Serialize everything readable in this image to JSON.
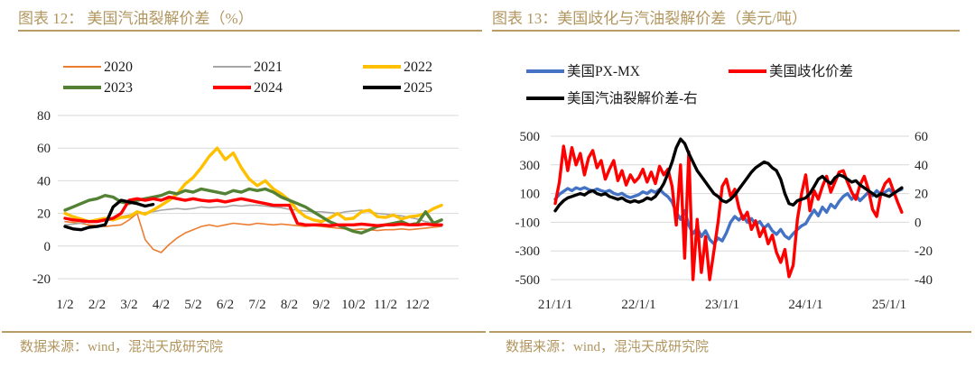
{
  "panels": {
    "left": {
      "title": "图表 12：  美国汽油裂解价差（%）",
      "source": "数据来源：wind，混沌天成研究院"
    },
    "right": {
      "title": "图表 13：美国歧化与汽油裂解价差（美元/吨）",
      "source": "数据来源：wind，混沌天成研究院"
    }
  },
  "colors": {
    "accent_gold": "#B2965F",
    "rule_gold": "#B89C66",
    "grid": "#D9D9D9",
    "tick_text": "#262626",
    "orange_2020": "#ED7D31",
    "gray_2021": "#A6A6A6",
    "yellow_2022": "#FFC000",
    "green_2023": "#548235",
    "red_series": "#FF0000",
    "black_series": "#000000",
    "blue_pxmx": "#4472C4"
  },
  "chart_data": [
    {
      "id": "us-gasoline-crack-seasonal",
      "type": "line",
      "title": "美国汽油裂解价差（%）",
      "legend_position": "top",
      "grid": "horizontal",
      "x_unit": "month (M/2 labels)",
      "x_ticks": {
        "labels": [
          "1/2",
          "2/2",
          "3/2",
          "4/2",
          "5/2",
          "6/2",
          "7/2",
          "8/2",
          "9/2",
          "10/2",
          "11/2",
          "12/2"
        ],
        "positions": [
          0,
          1,
          2,
          3,
          4,
          5,
          6,
          7,
          8,
          9,
          10,
          11
        ]
      },
      "y_axis": {
        "range": [
          -20,
          80
        ],
        "ticks": [
          80,
          60,
          40,
          20,
          0,
          -20
        ]
      },
      "series": [
        {
          "name": "2020",
          "color": "#ED7D31",
          "width": 1.6,
          "axis": "left",
          "x_start": 0,
          "x_step": 0.25,
          "values": [
            15,
            14.5,
            14,
            13,
            12.5,
            12,
            12.5,
            13,
            16,
            20,
            4,
            -2,
            -4,
            1,
            5,
            8,
            10,
            12,
            13,
            12,
            13,
            14,
            13.5,
            13,
            14,
            13.5,
            13,
            13.5,
            13,
            12.5,
            12,
            12.5,
            12,
            11.5,
            11,
            10.5,
            10,
            10.5,
            10,
            9.5,
            10,
            10,
            10.5,
            10,
            10.5,
            11,
            11.5,
            12
          ]
        },
        {
          "name": "2021",
          "color": "#A6A6A6",
          "width": 1.6,
          "axis": "left",
          "x_start": 0,
          "x_step": 0.25,
          "values": [
            13,
            13.5,
            14,
            15,
            15.5,
            16,
            17,
            18,
            19,
            20,
            20.5,
            21,
            22,
            22.5,
            23,
            22.5,
            23,
            24,
            23.5,
            24,
            24,
            25,
            24.5,
            25,
            25,
            24.5,
            24,
            23.5,
            22.5,
            22,
            21.5,
            21,
            21,
            20.5,
            20,
            21,
            21.5,
            22,
            21,
            20,
            19.5,
            19,
            18.5,
            17.5,
            16.5,
            15,
            14,
            12
          ]
        },
        {
          "name": "2022",
          "color": "#FFC000",
          "width": 3.4,
          "axis": "left",
          "x_start": 0,
          "x_step": 0.25,
          "values": [
            20,
            18,
            16.5,
            15,
            16,
            17,
            16,
            17.5,
            18,
            21,
            19.5,
            22,
            25,
            28,
            32,
            38,
            42,
            48,
            55,
            60,
            53,
            57,
            48,
            41,
            37,
            40,
            35,
            32,
            28,
            22,
            18,
            16,
            15,
            17,
            20,
            16.5,
            17,
            21,
            22,
            18,
            17.5,
            19,
            16.5,
            18,
            18.5,
            20,
            23,
            25
          ]
        },
        {
          "name": "2023",
          "color": "#548235",
          "width": 3.4,
          "axis": "left",
          "x_start": 0,
          "x_step": 0.25,
          "values": [
            22,
            24,
            26,
            28,
            29,
            31,
            30,
            27,
            26,
            28,
            29,
            30,
            31,
            33,
            32,
            34,
            33,
            35,
            34,
            33,
            32,
            34,
            33,
            35,
            34,
            35,
            33,
            30,
            28,
            26,
            24,
            21,
            18,
            15,
            13,
            11,
            9,
            8,
            10,
            12,
            13,
            14,
            15,
            13,
            14,
            21,
            14,
            16
          ]
        },
        {
          "name": "2024",
          "color": "#FF0000",
          "width": 3.4,
          "axis": "left",
          "x_start": 0,
          "x_step": 0.25,
          "values": [
            17,
            16,
            15.5,
            15,
            15,
            16,
            17,
            20,
            28,
            29,
            28,
            29,
            28,
            30,
            29,
            28,
            29,
            28,
            27.5,
            28,
            27,
            28,
            29,
            28,
            27,
            26,
            25,
            25,
            25,
            14,
            13,
            13,
            13,
            12.5,
            13,
            13,
            13,
            13.5,
            13,
            12.5,
            13,
            13,
            13.5,
            13,
            13,
            13.5,
            13,
            13
          ]
        },
        {
          "name": "2025",
          "color": "#000000",
          "width": 3.4,
          "axis": "left",
          "x_start": 0,
          "x_step": 0.25,
          "values": [
            12,
            10.5,
            10,
            11.5,
            12,
            13,
            24,
            28,
            27,
            26,
            24.5,
            25.5
          ]
        }
      ]
    },
    {
      "id": "us-px-mx-and-crack",
      "type": "line",
      "title": "美国歧化与汽油裂解价差（美元/吨）",
      "legend_position": "top",
      "grid": "horizontal",
      "x_unit": "years (YY/1/1 labels)",
      "x_ticks": {
        "labels": [
          "21/1/1",
          "22/1/1",
          "23/1/1",
          "24/1/1",
          "25/1/1"
        ],
        "positions": [
          0,
          1,
          2,
          3,
          4
        ]
      },
      "y_axis": {
        "range": [
          -500,
          500
        ],
        "ticks": [
          500,
          300,
          100,
          -100,
          -300,
          -500
        ]
      },
      "y_axis_right": {
        "range": [
          -40,
          60
        ],
        "ticks": [
          60,
          40,
          20,
          0,
          -20,
          -40
        ]
      },
      "series": [
        {
          "name": "美国PX-MX",
          "color": "#4472C4",
          "width": 3.4,
          "axis": "left",
          "x_start": 0,
          "x_step": 0.05,
          "values": [
            60,
            95,
            115,
            135,
            120,
            140,
            130,
            142,
            128,
            118,
            132,
            120,
            112,
            122,
            102,
            92,
            102,
            82,
            72,
            82,
            92,
            112,
            100,
            122,
            108,
            130,
            100,
            78,
            40,
            -30,
            -80,
            -20,
            -120,
            -180,
            -140,
            -200,
            -160,
            -220,
            -250,
            -210,
            -230,
            -175,
            -100,
            -60,
            -85,
            -55,
            -100,
            -75,
            -115,
            -95,
            -140,
            -115,
            -160,
            -185,
            -150,
            -195,
            -215,
            -180,
            -150,
            -125,
            -110,
            -60,
            -15,
            -55,
            5,
            -30,
            25,
            0,
            45,
            80,
            100,
            60,
            90,
            50,
            80,
            110,
            85,
            120,
            95,
            110,
            130,
            100,
            118,
            130
          ]
        },
        {
          "name": "美国歧化价差",
          "color": "#FF0000",
          "width": 3.4,
          "axis": "left",
          "x_start": 0,
          "x_step": 0.05,
          "values": [
            30,
            180,
            430,
            260,
            420,
            300,
            380,
            230,
            350,
            400,
            280,
            330,
            200,
            270,
            330,
            190,
            260,
            160,
            230,
            180,
            210,
            270,
            180,
            250,
            170,
            290,
            230,
            270,
            150,
            -120,
            300,
            -350,
            390,
            -500,
            -80,
            -450,
            -200,
            -500,
            -300,
            -100,
            150,
            200,
            80,
            130,
            0,
            -80,
            -30,
            -150,
            -90,
            -200,
            -140,
            -250,
            -190,
            -310,
            -380,
            -290,
            -480,
            -400,
            -80,
            100,
            230,
            -20,
            120,
            60,
            150,
            220,
            110,
            180,
            250,
            260,
            180,
            110,
            60,
            160,
            220,
            130,
            -10,
            -60,
            100,
            170,
            200,
            120,
            40,
            -30
          ]
        },
        {
          "name": "美国汽油裂解价差-右",
          "color": "#000000",
          "width": 3.4,
          "axis": "right",
          "x_start": 0,
          "x_step": 0.05,
          "values": [
            8,
            12,
            15,
            17,
            18,
            19,
            20,
            19,
            21,
            22,
            20,
            19,
            20,
            18,
            17,
            16,
            17,
            15,
            14,
            15,
            14,
            15,
            17,
            16,
            18,
            22,
            27,
            34,
            42,
            52,
            58,
            55,
            48,
            42,
            36,
            32,
            28,
            24,
            20,
            18,
            15,
            14,
            16,
            19,
            23,
            27,
            31,
            35,
            38,
            40,
            42,
            41,
            38,
            36,
            30,
            20,
            13,
            12,
            15,
            16,
            17,
            20,
            25,
            30,
            32,
            29,
            27,
            31,
            33,
            32,
            30,
            28,
            29,
            26,
            24,
            22,
            20,
            18,
            20,
            19,
            18,
            20,
            22,
            24
          ]
        }
      ]
    }
  ]
}
